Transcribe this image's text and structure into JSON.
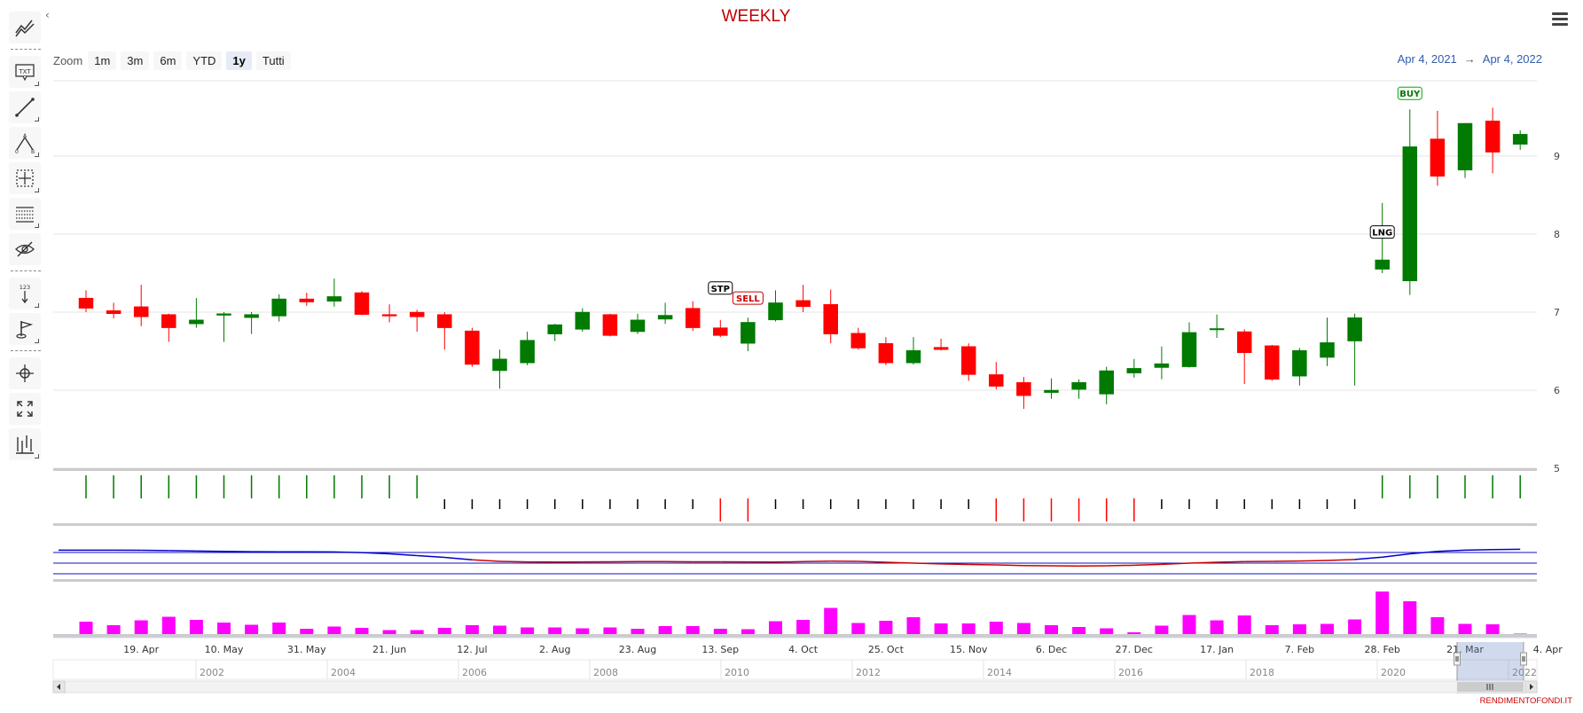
{
  "title": "WEEKLY",
  "collapse_glyph": "‹",
  "zoom": {
    "label": "Zoom",
    "buttons": [
      "1m",
      "3m",
      "6m",
      "YTD",
      "1y",
      "Tutti"
    ],
    "active": "1y"
  },
  "range": {
    "from": "Apr 4, 2021",
    "arrow": "→",
    "to": "Apr 4, 2022"
  },
  "credit": "RENDIMENTOFONDI.IT",
  "toolbar_icons": [
    "series-type-icon",
    "text-annotation-icon",
    "line-icon",
    "elliott-wave-icon",
    "measure-icon",
    "fibonacci-icon",
    "toggle-annotations-icon",
    "vertical-counter-icon",
    "flag-icon",
    "zoom-change-icon",
    "fullscreen-icon",
    "indicators-icon"
  ],
  "chart_data": {
    "type": "candlestick",
    "title": "WEEKLY",
    "x_tick_labels": [
      "19. Apr",
      "10. May",
      "31. May",
      "21. Jun",
      "12. Jul",
      "2. Aug",
      "23. Aug",
      "13. Sep",
      "4. Oct",
      "25. Oct",
      "15. Nov",
      "6. Dec",
      "27. Dec",
      "17. Jan",
      "7. Feb",
      "28. Feb",
      "21. Mar",
      "4. Apr"
    ],
    "y_tick_labels": [
      "5",
      "6",
      "7",
      "8",
      "9"
    ],
    "ylim": [
      5,
      10
    ],
    "weeks": [
      "2021-04-05",
      "2021-04-12",
      "2021-04-19",
      "2021-04-26",
      "2021-05-03",
      "2021-05-10",
      "2021-05-17",
      "2021-05-24",
      "2021-05-31",
      "2021-06-07",
      "2021-06-14",
      "2021-06-21",
      "2021-06-28",
      "2021-07-05",
      "2021-07-12",
      "2021-07-19",
      "2021-07-26",
      "2021-08-02",
      "2021-08-09",
      "2021-08-16",
      "2021-08-23",
      "2021-08-30",
      "2021-09-06",
      "2021-09-13",
      "2021-09-20",
      "2021-09-27",
      "2021-10-04",
      "2021-10-11",
      "2021-10-18",
      "2021-10-25",
      "2021-11-01",
      "2021-11-08",
      "2021-11-15",
      "2021-11-22",
      "2021-11-29",
      "2021-12-06",
      "2021-12-13",
      "2021-12-20",
      "2021-12-27",
      "2022-01-03",
      "2022-01-10",
      "2022-01-17",
      "2022-01-24",
      "2022-01-31",
      "2022-02-07",
      "2022-02-14",
      "2022-02-21",
      "2022-02-28",
      "2022-03-07",
      "2022-03-14",
      "2022-03-21",
      "2022-03-28",
      "2022-04-04"
    ],
    "ohlc": [
      [
        7.18,
        7.28,
        7.0,
        7.05
      ],
      [
        7.02,
        7.12,
        6.92,
        6.98
      ],
      [
        7.07,
        7.35,
        6.82,
        6.94
      ],
      [
        6.97,
        6.98,
        6.62,
        6.8
      ],
      [
        6.85,
        7.18,
        6.8,
        6.9
      ],
      [
        6.96,
        7.0,
        6.62,
        6.98
      ],
      [
        6.93,
        7.0,
        6.72,
        6.97
      ],
      [
        6.95,
        7.23,
        6.88,
        7.17
      ],
      [
        7.17,
        7.25,
        7.08,
        7.13
      ],
      [
        7.14,
        7.43,
        7.07,
        7.2
      ],
      [
        7.25,
        7.27,
        6.96,
        6.97
      ],
      [
        6.97,
        7.1,
        6.87,
        6.95
      ],
      [
        7.0,
        7.03,
        6.75,
        6.94
      ],
      [
        6.97,
        7.0,
        6.52,
        6.8
      ],
      [
        6.76,
        6.8,
        6.3,
        6.33
      ],
      [
        6.25,
        6.52,
        6.02,
        6.4
      ],
      [
        6.35,
        6.75,
        6.32,
        6.64
      ],
      [
        6.72,
        6.85,
        6.63,
        6.84
      ],
      [
        6.78,
        7.05,
        6.75,
        7.0
      ],
      [
        6.97,
        6.98,
        6.69,
        6.7
      ],
      [
        6.75,
        6.98,
        6.72,
        6.9
      ],
      [
        6.91,
        7.12,
        6.85,
        6.96
      ],
      [
        7.05,
        7.14,
        6.76,
        6.8
      ],
      [
        6.8,
        6.9,
        6.68,
        6.7
      ],
      [
        6.6,
        6.93,
        6.5,
        6.87
      ],
      [
        6.9,
        7.28,
        6.88,
        7.12
      ],
      [
        7.15,
        7.35,
        7.0,
        7.07
      ],
      [
        7.1,
        7.29,
        6.6,
        6.72
      ],
      [
        6.73,
        6.8,
        6.52,
        6.54
      ],
      [
        6.6,
        6.68,
        6.32,
        6.35
      ],
      [
        6.35,
        6.68,
        6.33,
        6.51
      ],
      [
        6.55,
        6.66,
        6.51,
        6.52
      ],
      [
        6.56,
        6.6,
        6.12,
        6.2
      ],
      [
        6.2,
        6.36,
        6.01,
        6.05
      ],
      [
        6.1,
        6.17,
        5.76,
        5.93
      ],
      [
        5.97,
        6.15,
        5.89,
        6.0
      ],
      [
        6.01,
        6.14,
        5.89,
        6.1
      ],
      [
        5.95,
        6.3,
        5.82,
        6.25
      ],
      [
        6.22,
        6.4,
        6.16,
        6.28
      ],
      [
        6.29,
        6.56,
        6.14,
        6.34
      ],
      [
        6.3,
        6.87,
        6.29,
        6.74
      ],
      [
        6.79,
        6.97,
        6.67,
        6.79
      ],
      [
        6.75,
        6.78,
        6.08,
        6.48
      ],
      [
        6.57,
        6.58,
        6.12,
        6.14
      ],
      [
        6.18,
        6.54,
        6.06,
        6.51
      ],
      [
        6.42,
        6.93,
        6.31,
        6.61
      ],
      [
        6.63,
        6.98,
        6.06,
        6.93
      ],
      [
        7.55,
        8.4,
        7.5,
        7.67
      ],
      [
        7.4,
        9.6,
        7.22,
        9.12
      ],
      [
        9.22,
        9.58,
        8.62,
        8.74
      ],
      [
        8.82,
        9.4,
        8.72,
        9.42
      ],
      [
        9.45,
        9.62,
        8.78,
        9.05
      ],
      [
        9.15,
        9.33,
        9.08,
        9.28
      ]
    ],
    "flags": [
      {
        "label": "STP",
        "week": "2021-09-13",
        "style": "black"
      },
      {
        "label": "SELL",
        "week": "2021-09-20",
        "style": "red"
      },
      {
        "label": "LNG",
        "week": "2022-02-28",
        "style": "black"
      },
      {
        "label": "BUY",
        "week": "2022-03-07",
        "style": "green"
      }
    ],
    "signals": [
      1,
      1,
      1,
      1,
      1,
      1,
      1,
      1,
      1,
      1,
      1,
      1,
      1,
      0,
      0,
      0,
      0,
      0,
      0,
      0,
      0,
      0,
      0,
      -1,
      -1,
      0,
      0,
      0,
      0,
      0,
      0,
      0,
      0,
      -1,
      -1,
      -1,
      -1,
      -1,
      -1,
      0,
      0,
      0,
      0,
      0,
      0,
      0,
      0,
      1,
      1,
      1,
      1,
      1,
      1
    ],
    "oscillator": [
      0.86,
      0.86,
      0.85,
      0.83,
      0.8,
      0.78,
      0.76,
      0.75,
      0.75,
      0.74,
      0.7,
      0.62,
      0.5,
      0.38,
      0.22,
      0.12,
      0.08,
      0.07,
      0.08,
      0.09,
      0.1,
      0.1,
      0.09,
      0.09,
      0.08,
      0.07,
      0.1,
      0.13,
      0.12,
      0.06,
      0.0,
      -0.05,
      -0.09,
      -0.12,
      -0.16,
      -0.18,
      -0.19,
      -0.18,
      -0.14,
      -0.08,
      0.0,
      0.06,
      0.1,
      0.12,
      0.14,
      0.18,
      0.24,
      0.4,
      0.62,
      0.78,
      0.86,
      0.9,
      0.92
    ],
    "volume": [
      0.32,
      0.24,
      0.35,
      0.43,
      0.36,
      0.3,
      0.25,
      0.3,
      0.16,
      0.21,
      0.18,
      0.13,
      0.13,
      0.18,
      0.24,
      0.23,
      0.19,
      0.19,
      0.17,
      0.19,
      0.16,
      0.22,
      0.22,
      0.16,
      0.15,
      0.33,
      0.36,
      0.63,
      0.29,
      0.34,
      0.42,
      0.28,
      0.28,
      0.32,
      0.29,
      0.24,
      0.2,
      0.17,
      0.08,
      0.23,
      0.47,
      0.35,
      0.46,
      0.24,
      0.26,
      0.27,
      0.37,
      1.0,
      0.78,
      0.42,
      0.27,
      0.26,
      0.05
    ],
    "navigator_years": [
      "2002",
      "2004",
      "2006",
      "2008",
      "2010",
      "2012",
      "2014",
      "2016",
      "2018",
      "2020",
      "2022"
    ]
  }
}
